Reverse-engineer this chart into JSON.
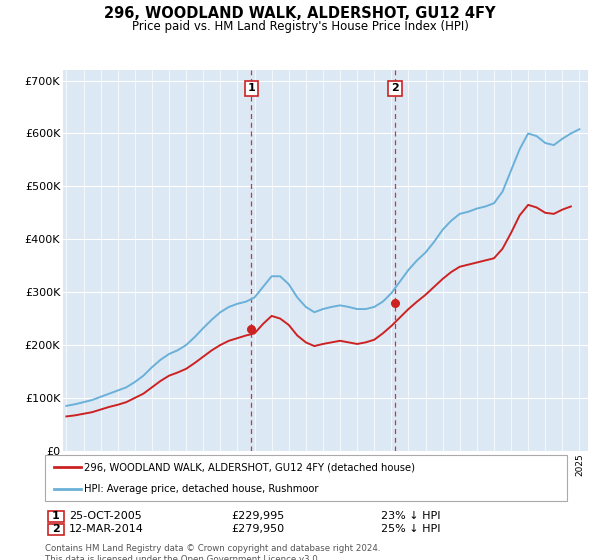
{
  "title": "296, WOODLAND WALK, ALDERSHOT, GU12 4FY",
  "subtitle": "Price paid vs. HM Land Registry's House Price Index (HPI)",
  "hpi_label": "HPI: Average price, detached house, Rushmoor",
  "price_label": "296, WOODLAND WALK, ALDERSHOT, GU12 4FY (detached house)",
  "footnote": "Contains HM Land Registry data © Crown copyright and database right 2024.\nThis data is licensed under the Open Government Licence v3.0.",
  "marker1_year": 2005.82,
  "marker2_year": 2014.21,
  "marker1_price": 229995,
  "marker2_price": 279950,
  "hpi_color": "#6ab0d8",
  "price_color": "#cc2222",
  "vline_color": "#cc2222",
  "plot_bg_color": "#dce9f5",
  "ylim": [
    0,
    720000
  ],
  "yticks": [
    0,
    100000,
    200000,
    300000,
    400000,
    500000,
    600000,
    700000
  ],
  "ytick_labels": [
    "£0",
    "£100K",
    "£200K",
    "£300K",
    "£400K",
    "£500K",
    "£600K",
    "£700K"
  ],
  "hpi_years": [
    1995.0,
    1995.5,
    1996.0,
    1996.5,
    1997.0,
    1997.5,
    1998.0,
    1998.5,
    1999.0,
    1999.5,
    2000.0,
    2000.5,
    2001.0,
    2001.5,
    2002.0,
    2002.5,
    2003.0,
    2003.5,
    2004.0,
    2004.5,
    2005.0,
    2005.5,
    2006.0,
    2006.5,
    2007.0,
    2007.5,
    2008.0,
    2008.5,
    2009.0,
    2009.5,
    2010.0,
    2010.5,
    2011.0,
    2011.5,
    2012.0,
    2012.5,
    2013.0,
    2013.5,
    2014.0,
    2014.5,
    2015.0,
    2015.5,
    2016.0,
    2016.5,
    2017.0,
    2017.5,
    2018.0,
    2018.5,
    2019.0,
    2019.5,
    2020.0,
    2020.5,
    2021.0,
    2021.5,
    2022.0,
    2022.5,
    2023.0,
    2023.5,
    2024.0,
    2024.5,
    2025.0
  ],
  "hpi_values": [
    85000,
    88000,
    92000,
    96000,
    102000,
    108000,
    114000,
    120000,
    130000,
    142000,
    158000,
    172000,
    183000,
    190000,
    200000,
    215000,
    232000,
    248000,
    262000,
    272000,
    278000,
    282000,
    290000,
    310000,
    330000,
    330000,
    315000,
    290000,
    272000,
    262000,
    268000,
    272000,
    275000,
    272000,
    268000,
    268000,
    272000,
    282000,
    298000,
    320000,
    342000,
    360000,
    375000,
    395000,
    418000,
    435000,
    448000,
    452000,
    458000,
    462000,
    468000,
    490000,
    530000,
    570000,
    600000,
    595000,
    582000,
    578000,
    590000,
    600000,
    608000
  ],
  "price_years": [
    1995.0,
    1995.5,
    1996.0,
    1996.5,
    1997.0,
    1997.5,
    1998.0,
    1998.5,
    1999.0,
    1999.5,
    2000.0,
    2000.5,
    2001.0,
    2001.5,
    2002.0,
    2002.5,
    2003.0,
    2003.5,
    2004.0,
    2004.5,
    2005.0,
    2005.5,
    2006.0,
    2006.5,
    2007.0,
    2007.5,
    2008.0,
    2008.5,
    2009.0,
    2009.5,
    2010.0,
    2010.5,
    2011.0,
    2011.5,
    2012.0,
    2012.5,
    2013.0,
    2013.5,
    2014.0,
    2014.5,
    2015.0,
    2015.5,
    2016.0,
    2016.5,
    2017.0,
    2017.5,
    2018.0,
    2018.5,
    2019.0,
    2019.5,
    2020.0,
    2020.5,
    2021.0,
    2021.5,
    2022.0,
    2022.5,
    2023.0,
    2023.5,
    2024.0,
    2024.5
  ],
  "price_values": [
    65000,
    67000,
    70000,
    73000,
    78000,
    83000,
    87000,
    92000,
    100000,
    108000,
    120000,
    132000,
    142000,
    148000,
    155000,
    166000,
    178000,
    190000,
    200000,
    208000,
    213000,
    218000,
    222000,
    240000,
    255000,
    250000,
    238000,
    218000,
    205000,
    198000,
    202000,
    205000,
    208000,
    205000,
    202000,
    205000,
    210000,
    222000,
    236000,
    252000,
    268000,
    282000,
    295000,
    310000,
    325000,
    338000,
    348000,
    352000,
    356000,
    360000,
    364000,
    382000,
    412000,
    445000,
    465000,
    460000,
    450000,
    448000,
    456000,
    462000
  ]
}
